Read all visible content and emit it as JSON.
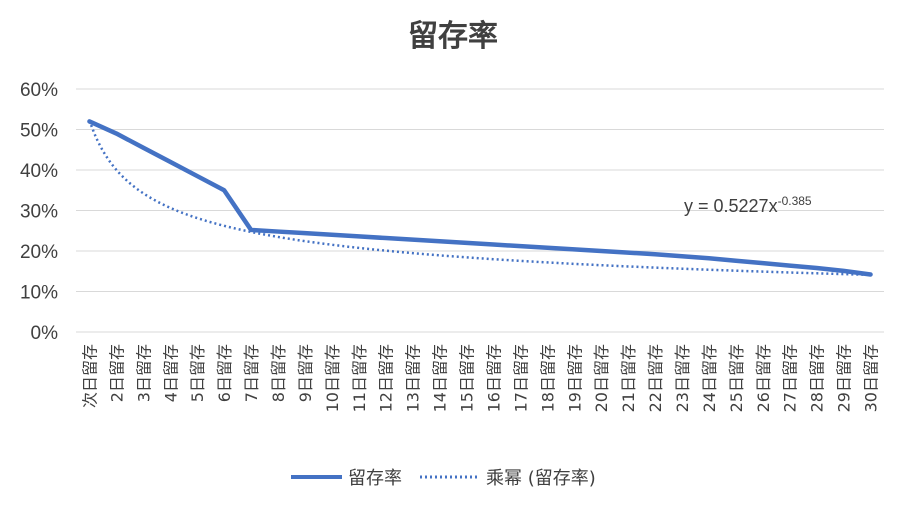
{
  "chart_data": {
    "type": "line",
    "title": "留存率",
    "categories": [
      "次日留存",
      "2日留存",
      "3日留存",
      "4日留存",
      "5日留存",
      "6日留存",
      "7日留存",
      "8日留存",
      "9日留存",
      "10日留存",
      "11日留存",
      "12日留存",
      "13日留存",
      "14日留存",
      "15日留存",
      "16日留存",
      "17日留存",
      "18日留存",
      "19日留存",
      "20日留存",
      "21日留存",
      "22日留存",
      "23日留存",
      "24日留存",
      "25日留存",
      "26日留存",
      "27日留存",
      "28日留存",
      "29日留存",
      "30日留存"
    ],
    "yticks": [
      "0%",
      "10%",
      "20%",
      "30%",
      "40%",
      "50%",
      "60%"
    ],
    "ylim": [
      0,
      0.6
    ],
    "grid": true,
    "legend_position": "bottom",
    "series": [
      {
        "name": "留存率",
        "style": "solid",
        "color": "#4472C4",
        "values": [
          0.52,
          0.49,
          0.455,
          0.42,
          0.385,
          0.35,
          0.252,
          0.248,
          0.244,
          0.24,
          0.236,
          0.232,
          0.228,
          0.224,
          0.22,
          0.216,
          0.212,
          0.208,
          0.204,
          0.2,
          0.196,
          0.192,
          0.187,
          0.182,
          0.176,
          0.17,
          0.164,
          0.158,
          0.151,
          0.142
        ]
      }
    ],
    "trendline": {
      "name": "乘幂 (留存率)",
      "style": "dotted",
      "color": "#4472C4",
      "type": "power",
      "coefficient": 0.5227,
      "exponent": -0.385,
      "equation_prefix": "y = 0.5227x",
      "equation_exponent": "-0.385"
    }
  }
}
